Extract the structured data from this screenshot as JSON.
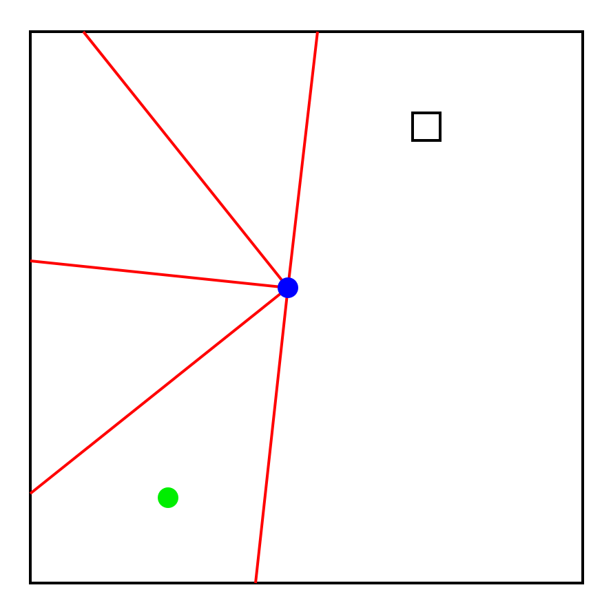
{
  "colors": {
    "background": "#ffffff",
    "frame": "#000000",
    "rays": "#ff0000",
    "hub_point": "#0000ff",
    "goal_point": "#00ee00",
    "marker": "#000000"
  },
  "elements": {
    "frame": "square-frame",
    "rays": [
      "ray-top-left",
      "ray-top",
      "ray-left",
      "ray-lower-left",
      "ray-bottom"
    ],
    "hub_point": "blue-dot",
    "goal_point": "green-dot",
    "marker": "square-marker"
  }
}
